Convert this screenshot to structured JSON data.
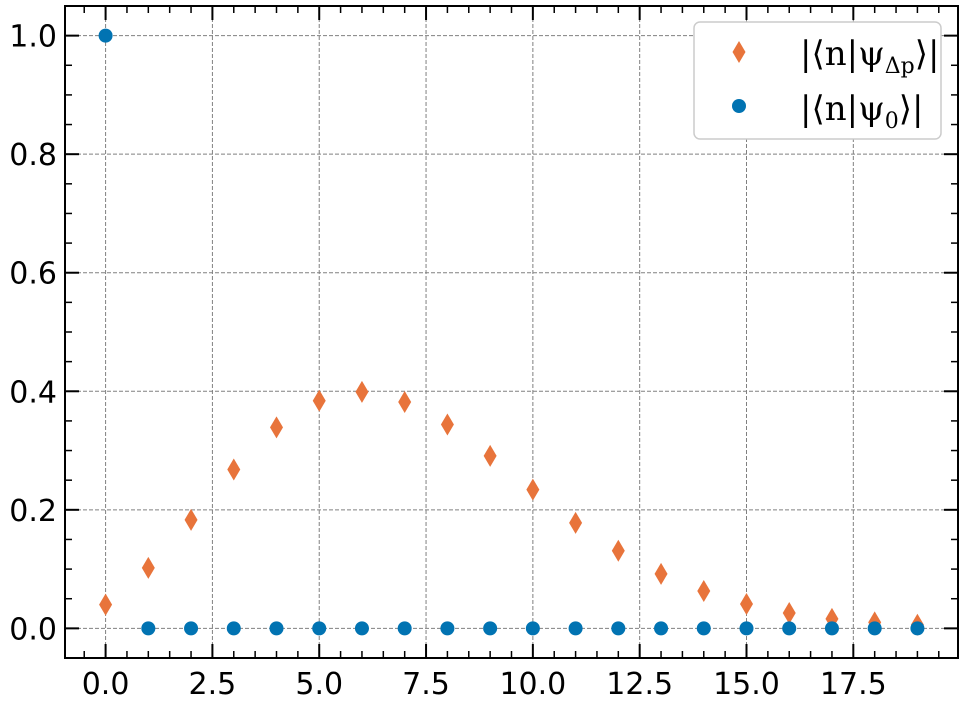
{
  "chart_data": {
    "type": "scatter",
    "title": "",
    "xlabel": "",
    "ylabel": "",
    "xlim": [
      -0.95,
      19.95
    ],
    "ylim": [
      -0.05,
      1.05
    ],
    "grid": true,
    "legend_position": "top-right",
    "x_ticks": [
      0.0,
      2.5,
      5.0,
      7.5,
      10.0,
      12.5,
      15.0,
      17.5
    ],
    "x_tick_labels": [
      "0.0",
      "2.5",
      "5.0",
      "7.5",
      "10.0",
      "12.5",
      "15.0",
      "17.5"
    ],
    "y_ticks": [
      0.0,
      0.2,
      0.4,
      0.6,
      0.8,
      1.0
    ],
    "y_tick_labels": [
      "0.0",
      "0.2",
      "0.4",
      "0.6",
      "0.8",
      "1.0"
    ],
    "series": [
      {
        "name": "|⟨n|ψΔp⟩|",
        "legend_main": "|⟨n|ψ",
        "legend_sub": "Δp",
        "legend_end": "⟩|",
        "marker": "diamond",
        "color": "#e8743b",
        "x": [
          0,
          1,
          2,
          3,
          4,
          5,
          6,
          7,
          8,
          9,
          10,
          11,
          12,
          13,
          14,
          15,
          16,
          17,
          18,
          19
        ],
        "values": [
          0.04,
          0.102,
          0.183,
          0.268,
          0.339,
          0.384,
          0.399,
          0.382,
          0.344,
          0.291,
          0.234,
          0.178,
          0.131,
          0.092,
          0.063,
          0.041,
          0.026,
          0.016,
          0.01,
          0.006
        ]
      },
      {
        "name": "|⟨n|ψ0⟩|",
        "legend_main": "|⟨n|ψ",
        "legend_sub": "0",
        "legend_end": "⟩|",
        "marker": "circle",
        "color": "#0173b2",
        "x": [
          0,
          1,
          2,
          3,
          4,
          5,
          6,
          7,
          8,
          9,
          10,
          11,
          12,
          13,
          14,
          15,
          16,
          17,
          18,
          19
        ],
        "values": [
          1.0,
          0,
          0,
          0,
          0,
          0,
          0,
          0,
          0,
          0,
          0,
          0,
          0,
          0,
          0,
          0,
          0,
          0,
          0,
          0
        ]
      }
    ]
  }
}
